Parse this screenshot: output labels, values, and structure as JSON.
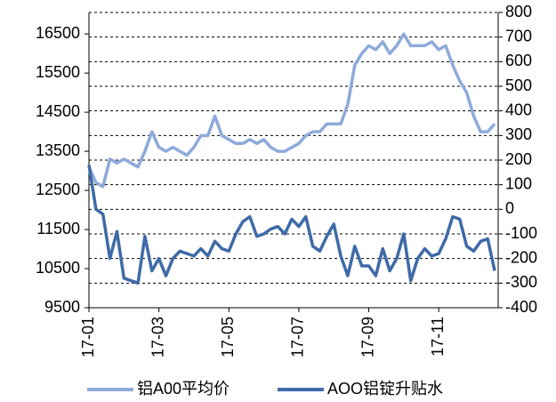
{
  "chart_data": {
    "type": "line",
    "x": [
      0,
      0.2,
      0.4,
      0.6,
      0.8,
      1.0,
      1.2,
      1.4,
      1.6,
      1.8,
      2.0,
      2.2,
      2.4,
      2.6,
      2.8,
      3.0,
      3.2,
      3.4,
      3.6,
      3.8,
      4.0,
      4.2,
      4.4,
      4.6,
      4.8,
      5.0,
      5.2,
      5.4,
      5.6,
      5.8,
      6.0,
      6.2,
      6.4,
      6.6,
      6.8,
      7.0,
      7.2,
      7.4,
      7.6,
      7.8,
      8.0,
      8.2,
      8.4,
      8.6,
      8.8,
      9.0,
      9.2,
      9.4,
      9.6,
      9.8,
      10.0,
      10.2,
      10.4,
      10.6,
      10.8,
      11.0,
      11.2,
      11.4,
      11.6
    ],
    "xlim": [
      0,
      11.7
    ],
    "xticks": [
      {
        "value": 0,
        "label": "17-01"
      },
      {
        "value": 2,
        "label": "17-03"
      },
      {
        "value": 4,
        "label": "17-05"
      },
      {
        "value": 6,
        "label": "17-07"
      },
      {
        "value": 8,
        "label": "17-09"
      },
      {
        "value": 10,
        "label": "17-11"
      }
    ],
    "ylim": [
      9500,
      17050
    ],
    "yticks": [
      9500,
      10500,
      11500,
      12500,
      13500,
      14500,
      15500,
      16500
    ],
    "y2lim": [
      -400,
      800
    ],
    "y2ticks": [
      -400,
      -300,
      -200,
      -100,
      0,
      100,
      200,
      300,
      400,
      500,
      600,
      700,
      800
    ],
    "grid": true,
    "legend": "bottom",
    "series": [
      {
        "name": "铝A00平均价",
        "color": "#8eaadb",
        "values": [
          13100,
          12700,
          12600,
          13300,
          13200,
          13300,
          13200,
          13100,
          13500,
          14000,
          13600,
          13500,
          13600,
          13500,
          13400,
          13600,
          13900,
          13900,
          14400,
          13900,
          13800,
          13700,
          13700,
          13800,
          13700,
          13800,
          13600,
          13500,
          13500,
          13600,
          13700,
          13900,
          14000,
          14000,
          14200,
          14200,
          14200,
          14700,
          15700,
          16000,
          16200,
          16100,
          16300,
          16000,
          16200,
          16500,
          16200,
          16200,
          16200,
          16300,
          16100,
          16200,
          15700,
          15300,
          15000,
          14400,
          14000,
          14000,
          14200
        ]
      },
      {
        "name": "AOO铝锭升贴水",
        "color": "#3f6aa8",
        "axis": "y2",
        "values": [
          180,
          0,
          -20,
          -200,
          -90,
          -280,
          -290,
          -300,
          -110,
          -250,
          -200,
          -270,
          -200,
          -170,
          -180,
          -190,
          -160,
          -190,
          -130,
          -160,
          -170,
          -100,
          -50,
          -30,
          -110,
          -100,
          -80,
          -70,
          -100,
          -40,
          -70,
          -30,
          -150,
          -170,
          -110,
          -60,
          -190,
          -270,
          -150,
          -230,
          -230,
          -270,
          -160,
          -250,
          -200,
          -100,
          -290,
          -200,
          -160,
          -190,
          -180,
          -120,
          -30,
          -40,
          -150,
          -170,
          -130,
          -120,
          -250
        ]
      }
    ]
  }
}
